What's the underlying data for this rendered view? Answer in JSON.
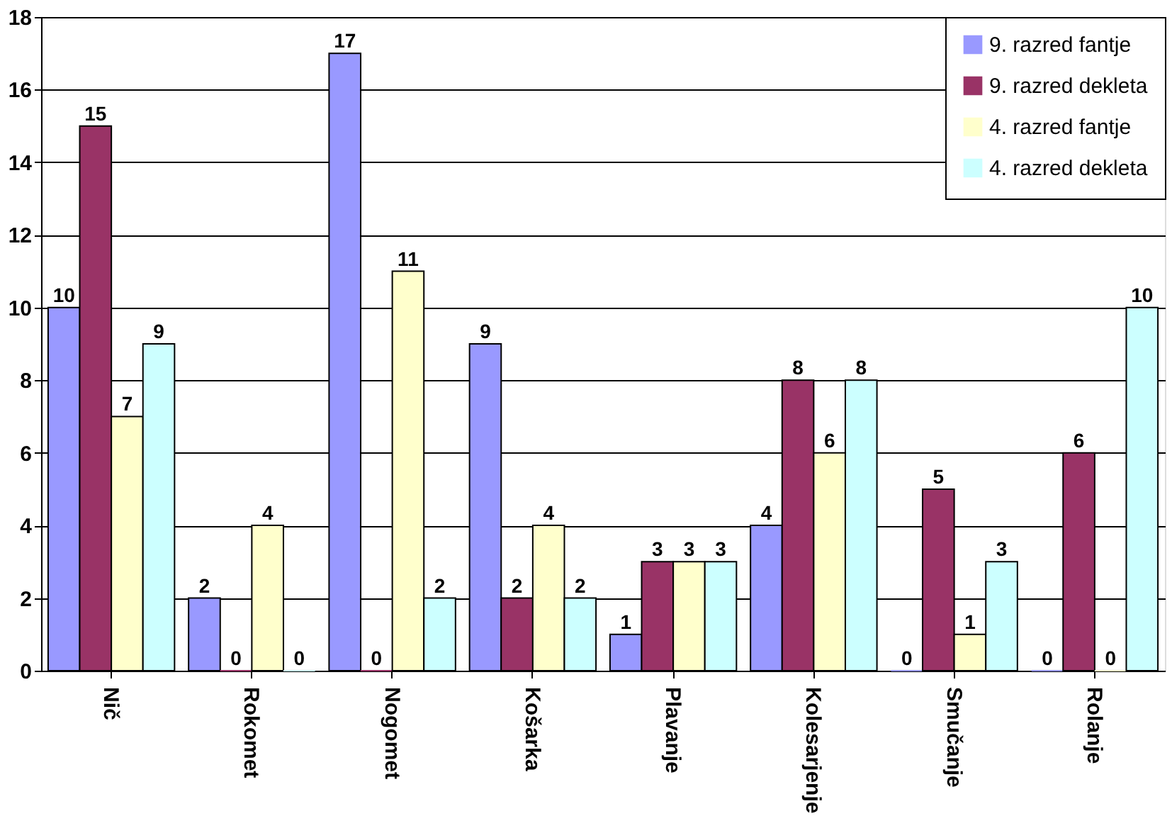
{
  "chart_data": {
    "type": "bar",
    "categories": [
      "Nič",
      "Rokomet",
      "Nogomet",
      "Košarka",
      "Plavanje",
      "Kolesarjenje",
      "Smučanje",
      "Rolanje"
    ],
    "series": [
      {
        "name": "9. razred fantje",
        "color": "#9999ff",
        "values": [
          10,
          2,
          17,
          9,
          1,
          4,
          0,
          0
        ]
      },
      {
        "name": "9. razred dekleta",
        "color": "#993366",
        "values": [
          15,
          0,
          0,
          2,
          3,
          8,
          5,
          6
        ]
      },
      {
        "name": "4. razred fantje",
        "color": "#ffffcc",
        "values": [
          7,
          4,
          11,
          4,
          3,
          6,
          1,
          0
        ]
      },
      {
        "name": "4. razred dekleta",
        "color": "#ccffff",
        "values": [
          9,
          0,
          2,
          2,
          3,
          8,
          3,
          10
        ]
      }
    ],
    "ylim": [
      0,
      18
    ],
    "yticks": [
      0,
      2,
      4,
      6,
      8,
      10,
      12,
      14,
      16,
      18
    ],
    "grid": "y",
    "legend": "top right",
    "data_labels": true
  }
}
